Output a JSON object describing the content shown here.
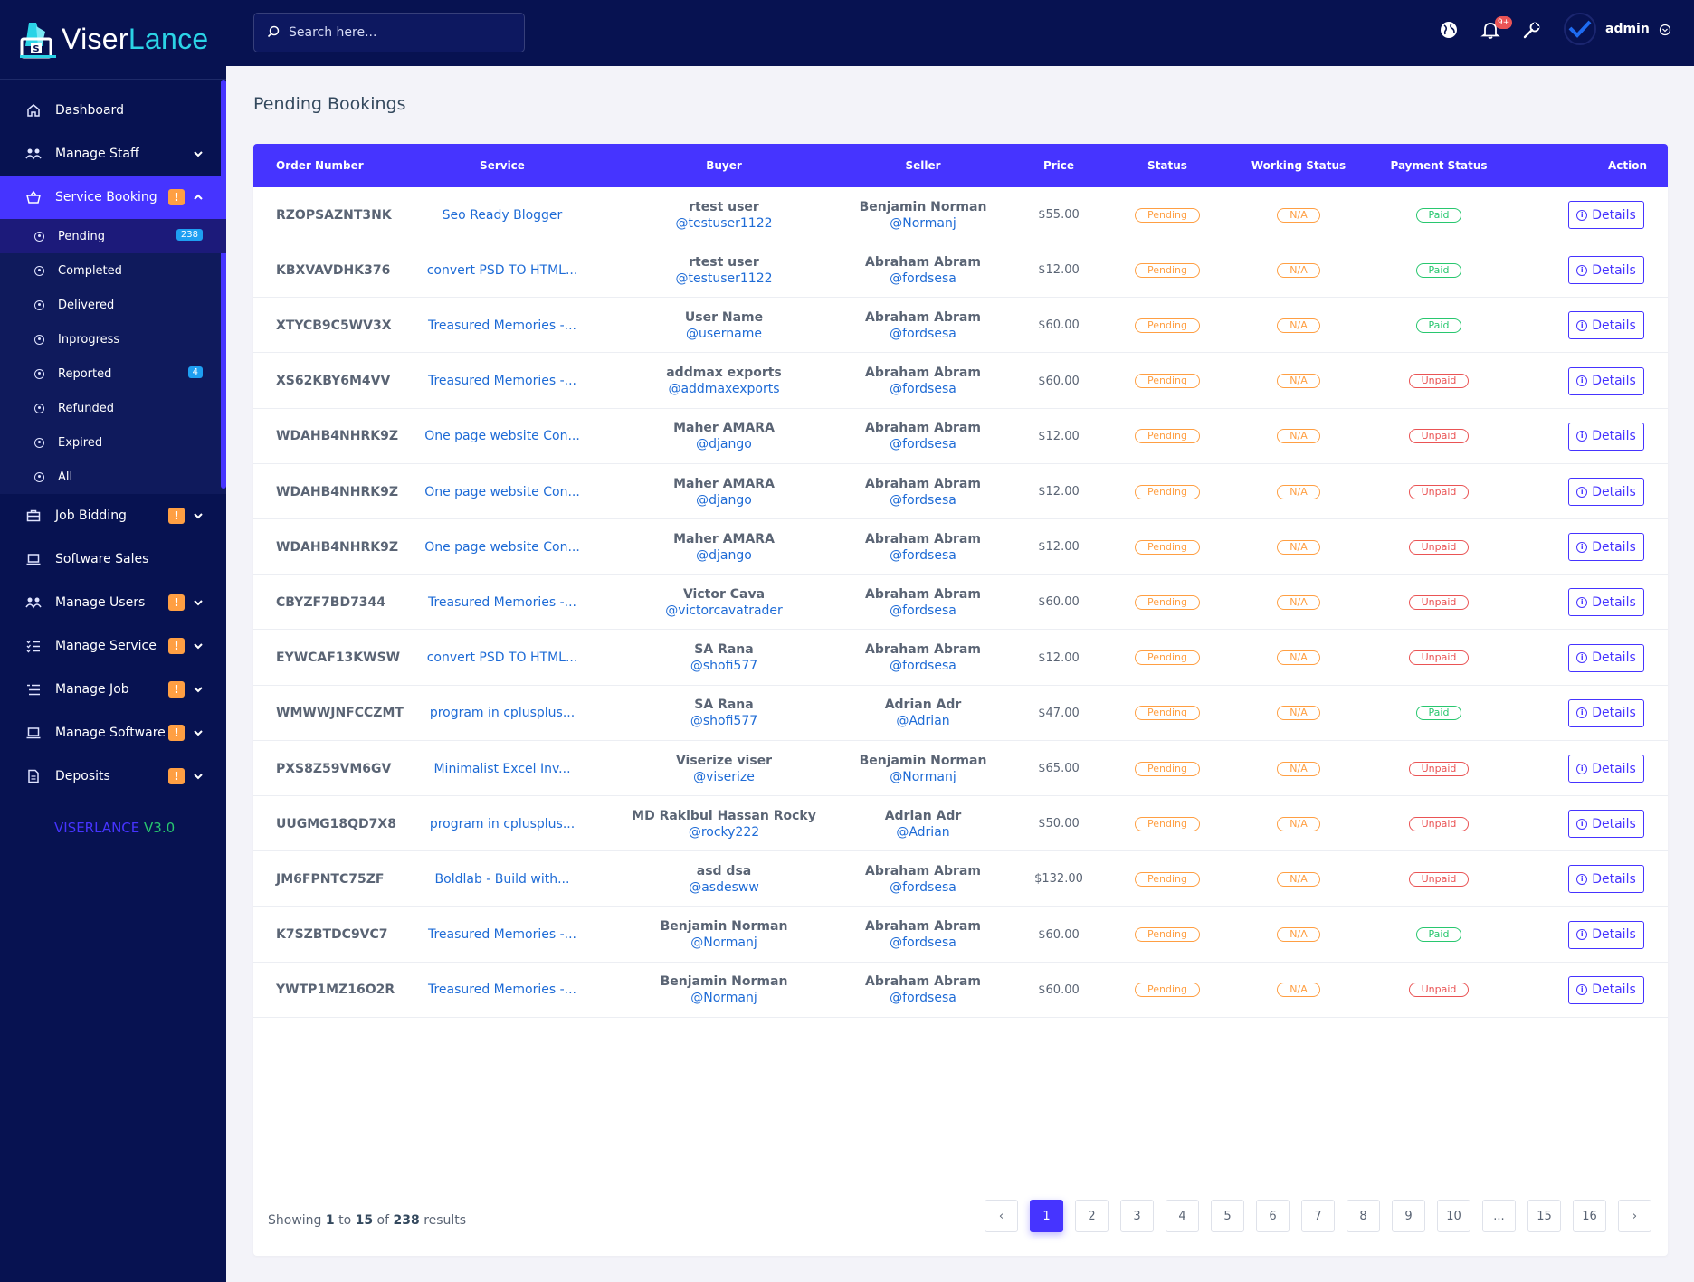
{
  "brand": {
    "name_a": "Viser",
    "name_b": "Lance"
  },
  "sidebar": {
    "items": [
      {
        "label": "Dashboard",
        "icon": "home-icon"
      },
      {
        "label": "Manage Staff",
        "icon": "users-cog-icon"
      },
      {
        "label": "Service Booking",
        "icon": "basket-icon",
        "alert": "!"
      }
    ],
    "booking_sub": [
      {
        "label": "Pending",
        "count": "238"
      },
      {
        "label": "Completed"
      },
      {
        "label": "Delivered"
      },
      {
        "label": "Inprogress"
      },
      {
        "label": "Reported",
        "count": "4"
      },
      {
        "label": "Refunded"
      },
      {
        "label": "Expired"
      },
      {
        "label": "All"
      }
    ],
    "items_after": [
      {
        "label": "Job Bidding",
        "icon": "briefcase-icon",
        "alert": "!"
      },
      {
        "label": "Software Sales",
        "icon": "laptop-icon"
      },
      {
        "label": "Manage Users",
        "icon": "users-cog-icon",
        "alert": "!"
      },
      {
        "label": "Manage Service",
        "icon": "list-check-icon",
        "alert": "!"
      },
      {
        "label": "Manage Job",
        "icon": "list-icon",
        "alert": "!"
      },
      {
        "label": "Manage Software",
        "icon": "laptop-icon",
        "alert": "!"
      },
      {
        "label": "Deposits",
        "icon": "file-invoice-icon",
        "alert": "!"
      }
    ],
    "version_a": "VISERLANCE",
    "version_b": "V3.0"
  },
  "topbar": {
    "search_placeholder": "Search here...",
    "notification_count": "9+",
    "username": "admin"
  },
  "page_title": "Pending Bookings",
  "table": {
    "headers": [
      "Order Number",
      "Service",
      "Buyer",
      "Seller",
      "Price",
      "Status",
      "Working Status",
      "Payment Status",
      "Action"
    ],
    "rows": [
      {
        "order": "RZOPSAZNT3NK",
        "service": "Seo Ready Blogger",
        "buyer": "rtest user",
        "buyer_handle": "@testuser1122",
        "seller": "Benjamin Norman",
        "seller_handle": "@Normanj",
        "price": "$55.00",
        "status": "Pending",
        "working": "N/A",
        "payment": "Paid",
        "action": "Details"
      },
      {
        "order": "KBXVAVDHK376",
        "service": "convert PSD TO HTML...",
        "buyer": "rtest user",
        "buyer_handle": "@testuser1122",
        "seller": "Abraham Abram",
        "seller_handle": "@fordsesa",
        "price": "$12.00",
        "status": "Pending",
        "working": "N/A",
        "payment": "Paid",
        "action": "Details"
      },
      {
        "order": "XTYCB9C5WV3X",
        "service": "Treasured Memories -...",
        "buyer": "User Name",
        "buyer_handle": "@username",
        "seller": "Abraham Abram",
        "seller_handle": "@fordsesa",
        "price": "$60.00",
        "status": "Pending",
        "working": "N/A",
        "payment": "Paid",
        "action": "Details"
      },
      {
        "order": "XS62KBY6M4VV",
        "service": "Treasured Memories -...",
        "buyer": "addmax exports",
        "buyer_handle": "@addmaxexports",
        "seller": "Abraham Abram",
        "seller_handle": "@fordsesa",
        "price": "$60.00",
        "status": "Pending",
        "working": "N/A",
        "payment": "Unpaid",
        "action": "Details"
      },
      {
        "order": "WDAHB4NHRK9Z",
        "service": "One page website Con...",
        "buyer": "Maher AMARA",
        "buyer_handle": "@django",
        "seller": "Abraham Abram",
        "seller_handle": "@fordsesa",
        "price": "$12.00",
        "status": "Pending",
        "working": "N/A",
        "payment": "Unpaid",
        "action": "Details"
      },
      {
        "order": "WDAHB4NHRK9Z",
        "service": "One page website Con...",
        "buyer": "Maher AMARA",
        "buyer_handle": "@django",
        "seller": "Abraham Abram",
        "seller_handle": "@fordsesa",
        "price": "$12.00",
        "status": "Pending",
        "working": "N/A",
        "payment": "Unpaid",
        "action": "Details"
      },
      {
        "order": "WDAHB4NHRK9Z",
        "service": "One page website Con...",
        "buyer": "Maher AMARA",
        "buyer_handle": "@django",
        "seller": "Abraham Abram",
        "seller_handle": "@fordsesa",
        "price": "$12.00",
        "status": "Pending",
        "working": "N/A",
        "payment": "Unpaid",
        "action": "Details"
      },
      {
        "order": "CBYZF7BD7344",
        "service": "Treasured Memories -...",
        "buyer": "Victor Cava",
        "buyer_handle": "@victorcavatrader",
        "seller": "Abraham Abram",
        "seller_handle": "@fordsesa",
        "price": "$60.00",
        "status": "Pending",
        "working": "N/A",
        "payment": "Unpaid",
        "action": "Details"
      },
      {
        "order": "EYWCAF13KWSW",
        "service": "convert PSD TO HTML...",
        "buyer": "SA Rana",
        "buyer_handle": "@shofi577",
        "seller": "Abraham Abram",
        "seller_handle": "@fordsesa",
        "price": "$12.00",
        "status": "Pending",
        "working": "N/A",
        "payment": "Unpaid",
        "action": "Details"
      },
      {
        "order": "WMWWJNFCCZMT",
        "service": "program in cplusplus...",
        "buyer": "SA Rana",
        "buyer_handle": "@shofi577",
        "seller": "Adrian Adr",
        "seller_handle": "@Adrian",
        "price": "$47.00",
        "status": "Pending",
        "working": "N/A",
        "payment": "Paid",
        "action": "Details"
      },
      {
        "order": "PXS8Z59VM6GV",
        "service": "Minimalist Excel Inv...",
        "buyer": "Viserize viser",
        "buyer_handle": "@viserize",
        "seller": "Benjamin Norman",
        "seller_handle": "@Normanj",
        "price": "$65.00",
        "status": "Pending",
        "working": "N/A",
        "payment": "Unpaid",
        "action": "Details"
      },
      {
        "order": "UUGMG18QD7X8",
        "service": "program in cplusplus...",
        "buyer": "MD Rakibul Hassan Rocky",
        "buyer_handle": "@rocky222",
        "seller": "Adrian Adr",
        "seller_handle": "@Adrian",
        "price": "$50.00",
        "status": "Pending",
        "working": "N/A",
        "payment": "Unpaid",
        "action": "Details"
      },
      {
        "order": "JM6FPNTC75ZF",
        "service": "Boldlab - Build with...",
        "buyer": "asd dsa",
        "buyer_handle": "@asdesww",
        "seller": "Abraham Abram",
        "seller_handle": "@fordsesa",
        "price": "$132.00",
        "status": "Pending",
        "working": "N/A",
        "payment": "Unpaid",
        "action": "Details"
      },
      {
        "order": "K7SZBTDC9VC7",
        "service": "Treasured Memories -...",
        "buyer": "Benjamin Norman",
        "buyer_handle": "@Normanj",
        "seller": "Abraham Abram",
        "seller_handle": "@fordsesa",
        "price": "$60.00",
        "status": "Pending",
        "working": "N/A",
        "payment": "Paid",
        "action": "Details"
      },
      {
        "order": "YWTP1MZ16O2R",
        "service": "Treasured Memories -...",
        "buyer": "Benjamin Norman",
        "buyer_handle": "@Normanj",
        "seller": "Abraham Abram",
        "seller_handle": "@fordsesa",
        "price": "$60.00",
        "status": "Pending",
        "working": "N/A",
        "payment": "Unpaid",
        "action": "Details"
      }
    ]
  },
  "footer": {
    "showing_prefix": "Showing",
    "from": "1",
    "to_word": "to",
    "to": "15",
    "of_word": "of",
    "total": "238",
    "suffix": "results",
    "pages": [
      "‹",
      "1",
      "2",
      "3",
      "4",
      "5",
      "6",
      "7",
      "8",
      "9",
      "10",
      "...",
      "15",
      "16",
      "›"
    ],
    "current_page": "1"
  },
  "colors": {
    "sidebar_bg": "#071251",
    "accent": "#4634ff",
    "pending": "#ff9f43",
    "paid": "#28c76f",
    "unpaid": "#ea5455"
  }
}
